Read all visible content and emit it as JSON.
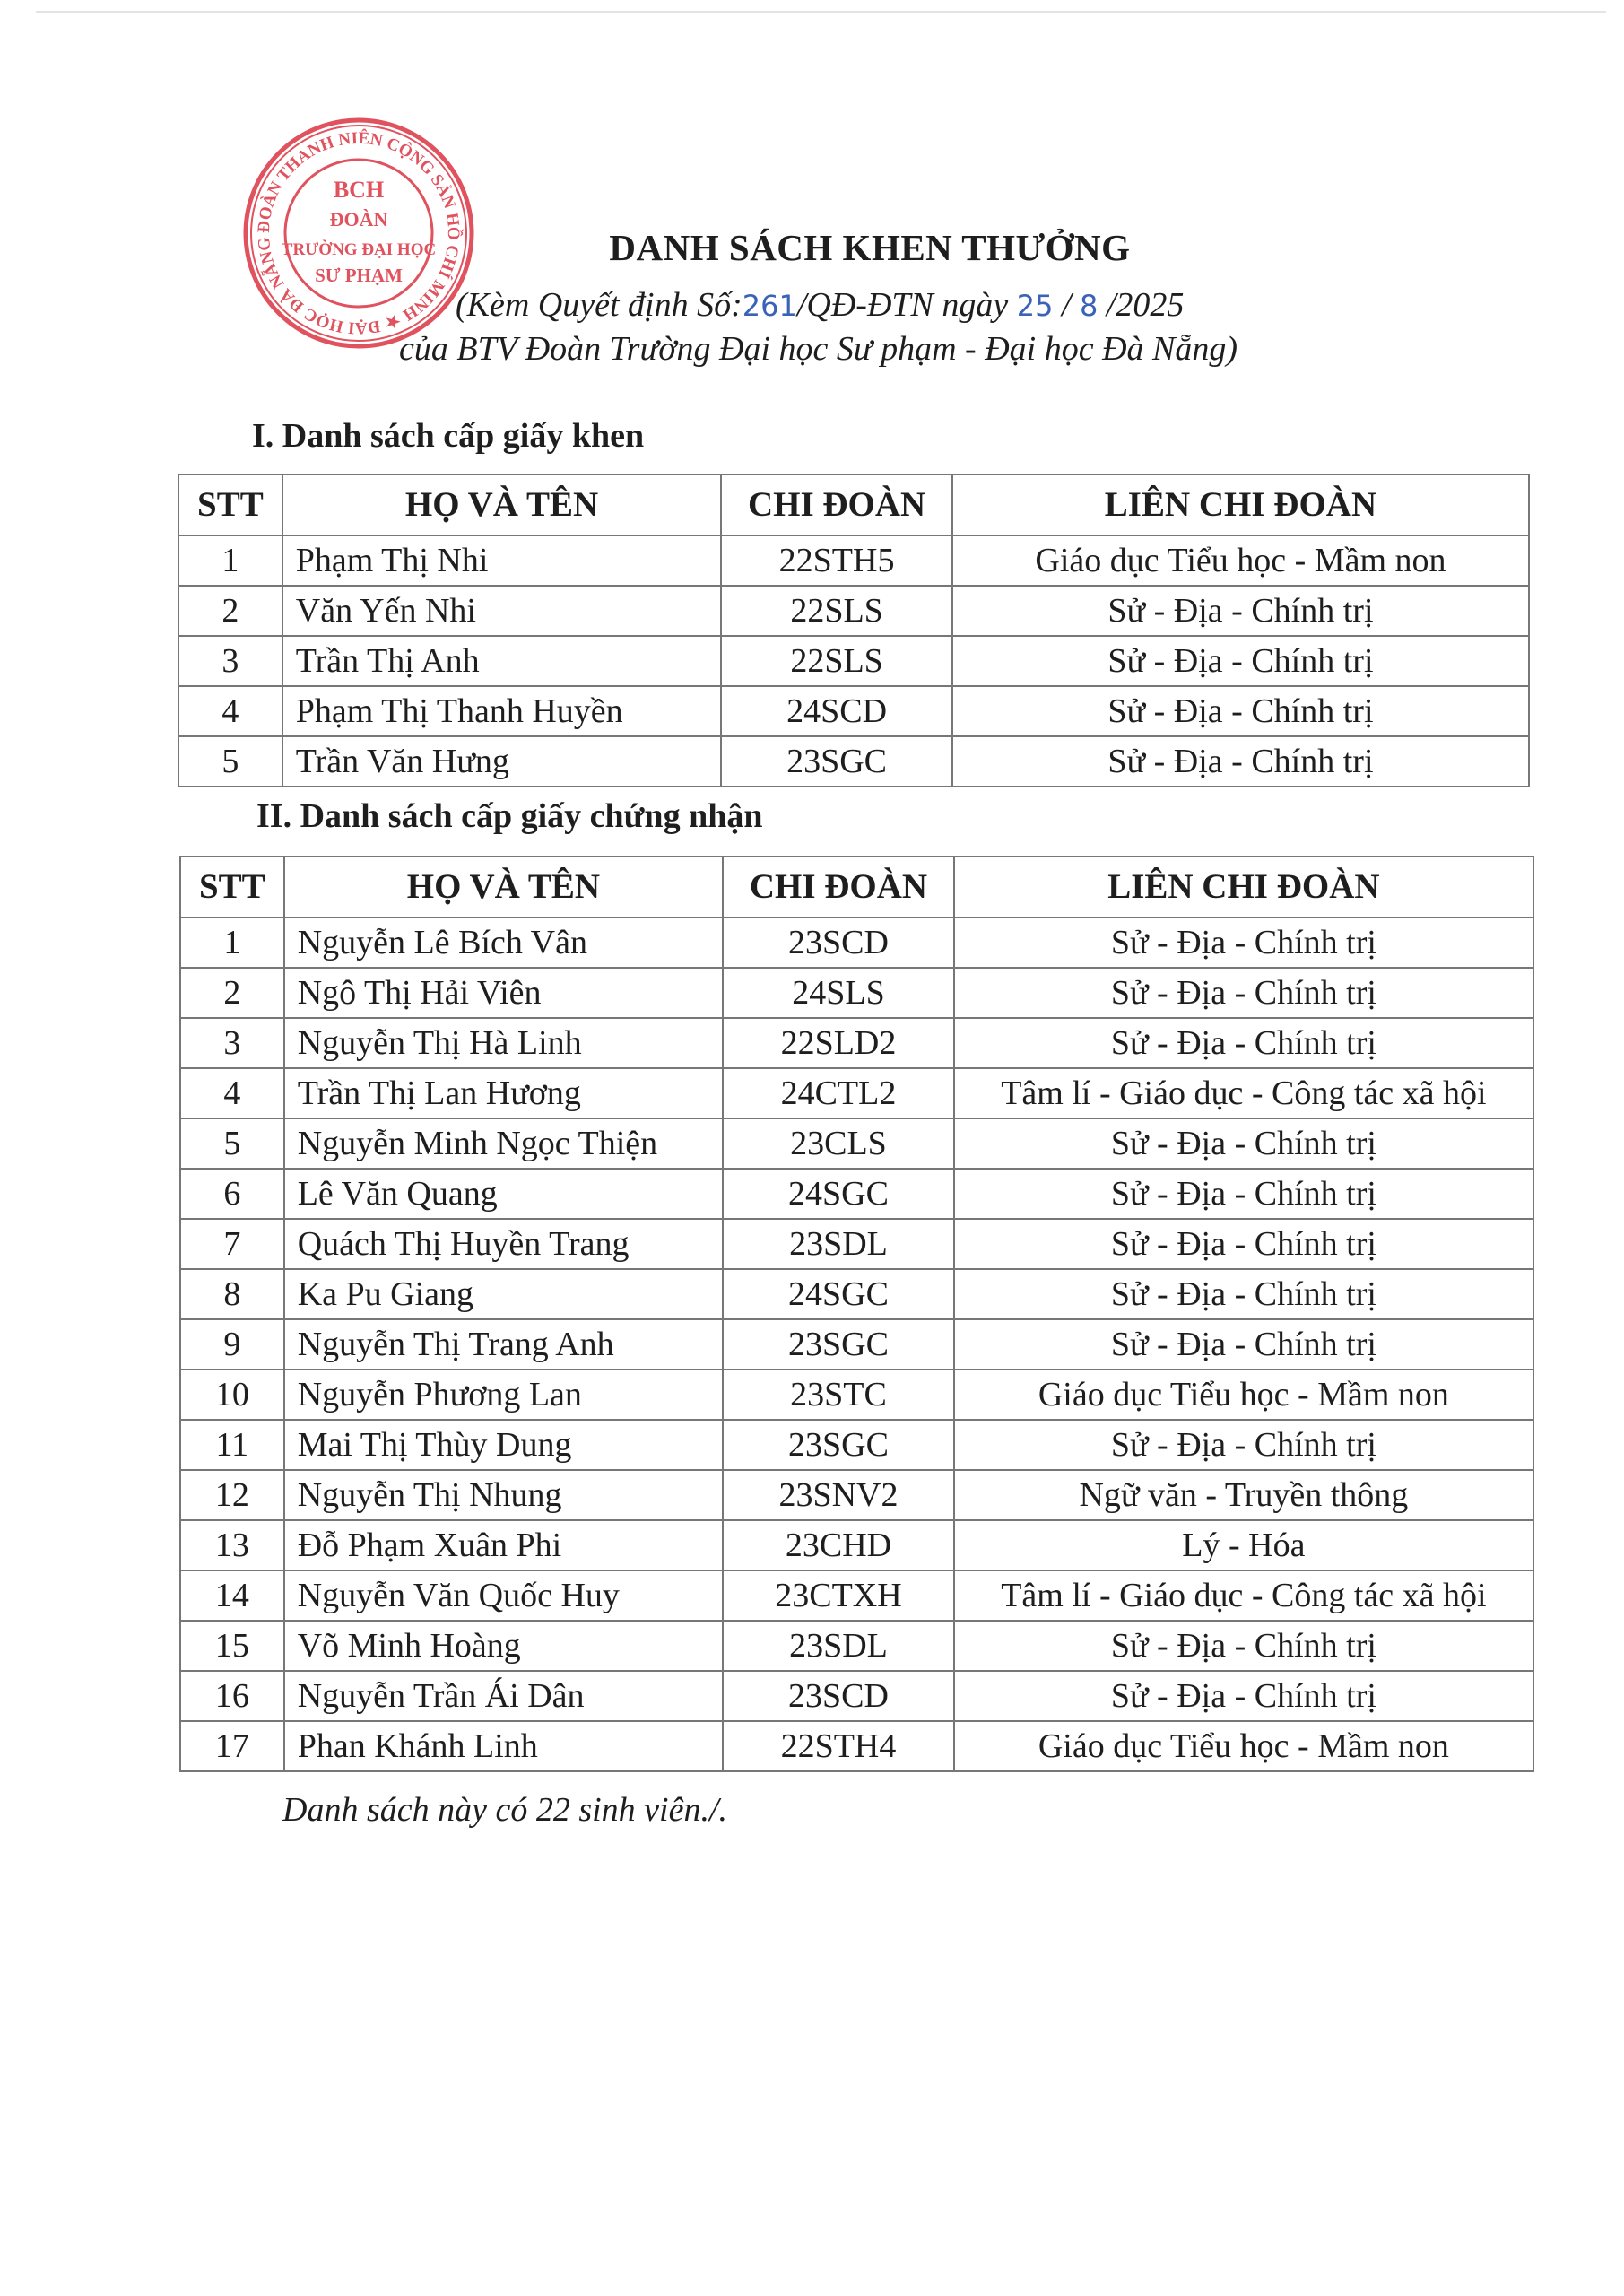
{
  "stamp": {
    "color": "#e0525e",
    "ring_text": "ĐOÀN THANH NIÊN CỘNG SẢN HỒ CHÍ MINH ★ ĐẠI HỌC ĐÀ NẴNG ★",
    "center_lines": [
      "BCH",
      "ĐOÀN",
      "TRƯỜNG ĐẠI HỌC",
      "SƯ PHẠM"
    ]
  },
  "header": {
    "title": "DANH SÁCH KHEN THƯỞNG",
    "sub1_prefix": "(Kèm Quyết định Số:",
    "decision_no": "261",
    "sub1_mid": "/QĐ-ĐTN ngày ",
    "day": "25",
    "sep": " / ",
    "month": "8",
    "year": " /2025",
    "sub2": "của BTV Đoàn Trường Đại học Sư phạm - Đại học Đà Nẵng)"
  },
  "columns": [
    "STT",
    "HỌ VÀ TÊN",
    "CHI ĐOÀN",
    "LIÊN CHI ĐOÀN"
  ],
  "section1": {
    "heading": "I. Danh sách cấp giấy khen",
    "rows": [
      [
        "1",
        "Phạm Thị Nhi",
        "22STH5",
        "Giáo dục Tiểu học - Mầm non"
      ],
      [
        "2",
        "Văn Yến Nhi",
        "22SLS",
        "Sử - Địa - Chính trị"
      ],
      [
        "3",
        "Trần Thị Anh",
        "22SLS",
        "Sử - Địa - Chính trị"
      ],
      [
        "4",
        "Phạm Thị Thanh Huyền",
        "24SCD",
        "Sử - Địa - Chính trị"
      ],
      [
        "5",
        "Trần Văn Hưng",
        "23SGC",
        "Sử - Địa - Chính trị"
      ]
    ]
  },
  "section2": {
    "heading": "II. Danh sách cấp giấy chứng nhận",
    "rows": [
      [
        "1",
        "Nguyễn Lê Bích Vân",
        "23SCD",
        "Sử - Địa - Chính trị"
      ],
      [
        "2",
        "Ngô Thị Hải Viên",
        "24SLS",
        "Sử - Địa - Chính trị"
      ],
      [
        "3",
        "Nguyễn Thị Hà Linh",
        "22SLD2",
        "Sử - Địa - Chính trị"
      ],
      [
        "4",
        "Trần Thị Lan Hương",
        "24CTL2",
        "Tâm lí - Giáo dục - Công tác xã hội"
      ],
      [
        "5",
        "Nguyễn Minh Ngọc Thiện",
        "23CLS",
        "Sử - Địa - Chính trị"
      ],
      [
        "6",
        "Lê Văn Quang",
        "24SGC",
        "Sử - Địa - Chính trị"
      ],
      [
        "7",
        "Quách Thị Huyền Trang",
        "23SDL",
        "Sử - Địa - Chính trị"
      ],
      [
        "8",
        "Ka Pu Giang",
        "24SGC",
        "Sử - Địa - Chính trị"
      ],
      [
        "9",
        "Nguyễn Thị Trang Anh",
        "23SGC",
        "Sử - Địa - Chính trị"
      ],
      [
        "10",
        "Nguyễn Phương Lan",
        "23STC",
        "Giáo dục Tiểu học - Mầm non"
      ],
      [
        "11",
        "Mai Thị Thùy Dung",
        "23SGC",
        "Sử - Địa - Chính trị"
      ],
      [
        "12",
        "Nguyễn Thị Nhung",
        "23SNV2",
        "Ngữ văn - Truyền thông"
      ],
      [
        "13",
        "Đỗ Phạm Xuân Phi",
        "23CHD",
        "Lý - Hóa"
      ],
      [
        "14",
        "Nguyễn Văn Quốc Huy",
        "23CTXH",
        "Tâm lí - Giáo dục - Công tác xã hội"
      ],
      [
        "15",
        "Võ Minh Hoàng",
        "23SDL",
        "Sử - Địa - Chính trị"
      ],
      [
        "16",
        "Nguyễn Trần Ái Dân",
        "23SCD",
        "Sử - Địa - Chính trị"
      ],
      [
        "17",
        "Phan Khánh Linh",
        "22STH4",
        "Giáo dục Tiểu học - Mầm non"
      ]
    ]
  },
  "footer": "Danh sách này có 22 sinh viên./."
}
